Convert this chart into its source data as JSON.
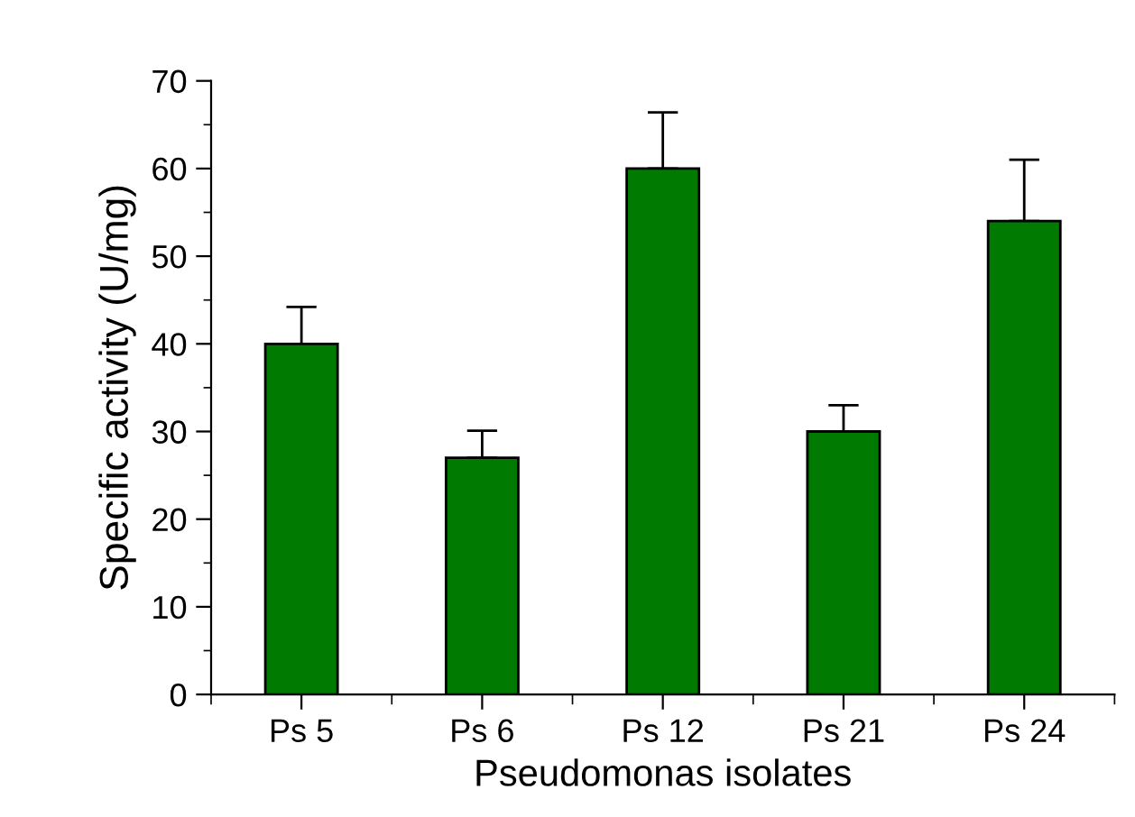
{
  "chart_data": {
    "type": "bar",
    "xlabel": "Pseudomonas isolates",
    "ylabel": "Specific activity (U/mg)",
    "categories": [
      "Ps 5",
      "Ps 6",
      "Ps 12",
      "Ps 21",
      "Ps 24"
    ],
    "values": [
      40,
      27,
      60,
      30,
      54
    ],
    "errors": [
      [
        40,
        44.2
      ],
      [
        27,
        30.1
      ],
      [
        60,
        66.4
      ],
      [
        30,
        33
      ],
      [
        54,
        61
      ]
    ],
    "color": "#007a00",
    "ylim": [
      0,
      70
    ],
    "yticks": [
      0,
      10,
      20,
      30,
      40,
      50,
      60,
      70
    ],
    "grid": false,
    "legend": false
  }
}
